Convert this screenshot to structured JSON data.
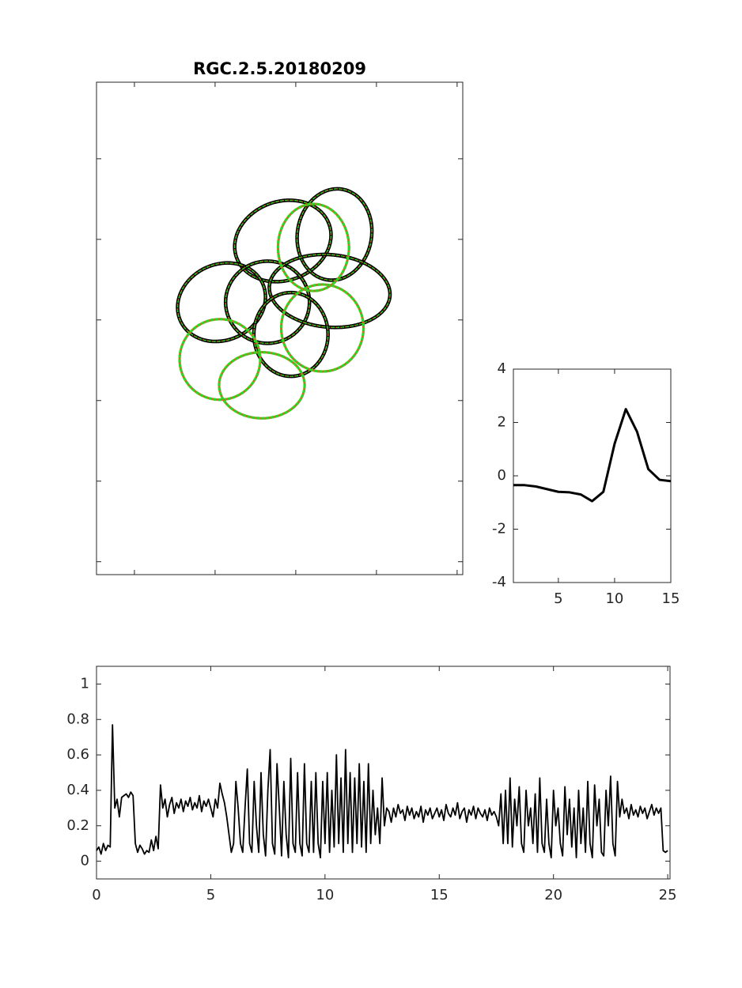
{
  "chart_data": [
    {
      "type": "ellipse",
      "title": "RGC.2.5.20180209",
      "xlim": [
        53,
        507
      ],
      "ylim": [
        5,
        616
      ],
      "y_reversed": true,
      "xticks": [
        100,
        200,
        300,
        400,
        500
      ],
      "yticks": [
        100,
        200,
        300,
        400,
        500,
        600
      ],
      "tick_labels": false,
      "colors": {
        "solid": "#000000",
        "dash": "#22dd22",
        "accent": "#d2691e"
      },
      "ellipses": [
        {
          "cx": 284,
          "cy": 202,
          "rx": 61,
          "ry": 49,
          "angle": -20,
          "style": "solid"
        },
        {
          "cx": 348,
          "cy": 194,
          "rx": 46,
          "ry": 57,
          "angle": 10,
          "style": "solid"
        },
        {
          "cx": 208,
          "cy": 278,
          "rx": 56,
          "ry": 47,
          "angle": -25,
          "style": "solid"
        },
        {
          "cx": 265,
          "cy": 278,
          "rx": 52,
          "ry": 51,
          "angle": 0,
          "style": "solid"
        },
        {
          "cx": 342,
          "cy": 264,
          "rx": 75,
          "ry": 45,
          "angle": 5,
          "style": "solid"
        },
        {
          "cx": 294,
          "cy": 318,
          "rx": 46,
          "ry": 52,
          "angle": 0,
          "style": "solid"
        },
        {
          "cx": 322,
          "cy": 210,
          "rx": 44,
          "ry": 54,
          "angle": 0,
          "style": "dotted"
        },
        {
          "cx": 333,
          "cy": 310,
          "rx": 51,
          "ry": 54,
          "angle": 0,
          "style": "dotted"
        },
        {
          "cx": 206,
          "cy": 349,
          "rx": 50,
          "ry": 50,
          "angle": 0,
          "style": "dotted"
        },
        {
          "cx": 258,
          "cy": 381,
          "rx": 53,
          "ry": 41,
          "angle": 0,
          "style": "dotted"
        }
      ]
    },
    {
      "type": "line",
      "color": "#000000",
      "x": [
        1,
        2,
        3,
        4,
        5,
        6,
        7,
        8,
        9,
        10,
        11,
        12,
        13,
        14,
        15
      ],
      "values": [
        -0.35,
        -0.35,
        -0.4,
        -0.5,
        -0.6,
        -0.62,
        -0.7,
        -0.95,
        -0.6,
        1.2,
        2.5,
        1.65,
        0.25,
        -0.15,
        -0.2
      ],
      "xlim": [
        1,
        15
      ],
      "ylim": [
        -4,
        4
      ],
      "xticks": [
        5,
        10,
        15
      ],
      "yticks": [
        -4,
        -2,
        0,
        2,
        4
      ],
      "tick_labels": true
    },
    {
      "type": "line",
      "color": "#000000",
      "x": [
        0,
        0.1,
        0.2,
        0.3,
        0.4,
        0.5,
        0.6,
        0.7,
        0.8,
        0.9,
        1,
        1.1,
        1.2,
        1.3,
        1.4,
        1.5,
        1.6,
        1.7,
        1.8,
        1.9,
        2,
        2.1,
        2.2,
        2.3,
        2.4,
        2.5,
        2.6,
        2.7,
        2.8,
        2.9,
        3,
        3.1,
        3.2,
        3.3,
        3.4,
        3.5,
        3.6,
        3.7,
        3.8,
        3.9,
        4,
        4.1,
        4.2,
        4.3,
        4.4,
        4.5,
        4.6,
        4.7,
        4.8,
        4.9,
        5,
        5.1,
        5.2,
        5.3,
        5.4,
        5.5,
        5.6,
        5.7,
        5.8,
        5.9,
        6,
        6.1,
        6.2,
        6.3,
        6.4,
        6.5,
        6.6,
        6.7,
        6.8,
        6.9,
        7,
        7.1,
        7.2,
        7.3,
        7.4,
        7.5,
        7.6,
        7.7,
        7.8,
        7.9,
        8,
        8.1,
        8.2,
        8.3,
        8.4,
        8.5,
        8.6,
        8.7,
        8.8,
        8.9,
        9,
        9.1,
        9.2,
        9.3,
        9.4,
        9.5,
        9.6,
        9.7,
        9.8,
        9.9,
        10,
        10.1,
        10.2,
        10.3,
        10.4,
        10.5,
        10.6,
        10.7,
        10.8,
        10.9,
        11,
        11.1,
        11.2,
        11.3,
        11.4,
        11.5,
        11.6,
        11.7,
        11.8,
        11.9,
        12,
        12.1,
        12.2,
        12.3,
        12.4,
        12.5,
        12.6,
        12.7,
        12.8,
        12.9,
        13,
        13.1,
        13.2,
        13.3,
        13.4,
        13.5,
        13.6,
        13.7,
        13.8,
        13.9,
        14,
        14.1,
        14.2,
        14.3,
        14.4,
        14.5,
        14.6,
        14.7,
        14.8,
        14.9,
        15,
        15.1,
        15.2,
        15.3,
        15.4,
        15.5,
        15.6,
        15.7,
        15.8,
        15.9,
        16,
        16.1,
        16.2,
        16.3,
        16.4,
        16.5,
        16.6,
        16.7,
        16.8,
        16.9,
        17,
        17.1,
        17.2,
        17.3,
        17.4,
        17.5,
        17.6,
        17.7,
        17.8,
        17.9,
        18,
        18.1,
        18.2,
        18.3,
        18.4,
        18.5,
        18.6,
        18.7,
        18.8,
        18.9,
        19,
        19.1,
        19.2,
        19.3,
        19.4,
        19.5,
        19.6,
        19.7,
        19.8,
        19.9,
        20,
        20.1,
        20.2,
        20.3,
        20.4,
        20.5,
        20.6,
        20.7,
        20.8,
        20.9,
        21,
        21.1,
        21.2,
        21.3,
        21.4,
        21.5,
        21.6,
        21.7,
        21.8,
        21.9,
        22,
        22.1,
        22.2,
        22.3,
        22.4,
        22.5,
        22.6,
        22.7,
        22.8,
        22.9,
        23,
        23.1,
        23.2,
        23.3,
        23.4,
        23.5,
        23.6,
        23.7,
        23.8,
        23.9,
        24,
        24.1,
        24.2,
        24.3,
        24.4,
        24.5,
        24.6,
        24.7,
        24.8,
        24.9,
        25
      ],
      "values": [
        0.06,
        0.08,
        0.04,
        0.1,
        0.06,
        0.09,
        0.08,
        0.77,
        0.3,
        0.35,
        0.25,
        0.36,
        0.37,
        0.38,
        0.36,
        0.39,
        0.37,
        0.1,
        0.05,
        0.09,
        0.07,
        0.04,
        0.06,
        0.05,
        0.12,
        0.06,
        0.14,
        0.07,
        0.43,
        0.3,
        0.35,
        0.25,
        0.32,
        0.36,
        0.27,
        0.33,
        0.3,
        0.35,
        0.28,
        0.34,
        0.31,
        0.36,
        0.29,
        0.33,
        0.3,
        0.37,
        0.28,
        0.34,
        0.31,
        0.35,
        0.3,
        0.25,
        0.35,
        0.3,
        0.44,
        0.38,
        0.33,
        0.25,
        0.15,
        0.05,
        0.1,
        0.45,
        0.3,
        0.1,
        0.05,
        0.3,
        0.52,
        0.1,
        0.05,
        0.45,
        0.2,
        0.05,
        0.5,
        0.15,
        0.03,
        0.4,
        0.63,
        0.1,
        0.04,
        0.55,
        0.3,
        0.03,
        0.45,
        0.15,
        0.02,
        0.58,
        0.1,
        0.05,
        0.5,
        0.1,
        0.03,
        0.55,
        0.1,
        0.05,
        0.45,
        0.05,
        0.5,
        0.1,
        0.02,
        0.45,
        0.1,
        0.5,
        0.05,
        0.4,
        0.08,
        0.6,
        0.1,
        0.47,
        0.05,
        0.63,
        0.1,
        0.5,
        0.05,
        0.47,
        0.1,
        0.55,
        0.08,
        0.45,
        0.05,
        0.55,
        0.1,
        0.4,
        0.15,
        0.3,
        0.1,
        0.47,
        0.2,
        0.3,
        0.28,
        0.22,
        0.3,
        0.25,
        0.32,
        0.27,
        0.29,
        0.23,
        0.31,
        0.26,
        0.3,
        0.24,
        0.28,
        0.25,
        0.31,
        0.22,
        0.29,
        0.26,
        0.3,
        0.24,
        0.27,
        0.3,
        0.25,
        0.29,
        0.23,
        0.32,
        0.27,
        0.25,
        0.3,
        0.26,
        0.33,
        0.24,
        0.28,
        0.3,
        0.22,
        0.29,
        0.26,
        0.31,
        0.24,
        0.3,
        0.27,
        0.25,
        0.29,
        0.23,
        0.3,
        0.26,
        0.28,
        0.25,
        0.2,
        0.38,
        0.1,
        0.4,
        0.1,
        0.47,
        0.08,
        0.35,
        0.2,
        0.42,
        0.1,
        0.05,
        0.4,
        0.2,
        0.3,
        0.1,
        0.38,
        0.05,
        0.47,
        0.1,
        0.05,
        0.35,
        0.1,
        0.02,
        0.4,
        0.2,
        0.3,
        0.1,
        0.03,
        0.42,
        0.15,
        0.35,
        0.08,
        0.3,
        0.02,
        0.4,
        0.1,
        0.3,
        0.05,
        0.45,
        0.1,
        0.02,
        0.43,
        0.2,
        0.35,
        0.05,
        0.03,
        0.4,
        0.2,
        0.48,
        0.1,
        0.03,
        0.45,
        0.25,
        0.35,
        0.27,
        0.3,
        0.24,
        0.32,
        0.26,
        0.29,
        0.25,
        0.31,
        0.27,
        0.3,
        0.24,
        0.28,
        0.32,
        0.26,
        0.3,
        0.27,
        0.3,
        0.06,
        0.05,
        0.06
      ],
      "xlim": [
        0,
        25.1
      ],
      "ylim": [
        -0.1,
        1.1
      ],
      "xticks": [
        0,
        5,
        10,
        15,
        20,
        25
      ],
      "yticks": [
        0,
        0.2,
        0.4,
        0.6,
        0.8,
        1
      ],
      "tick_labels": true
    }
  ]
}
